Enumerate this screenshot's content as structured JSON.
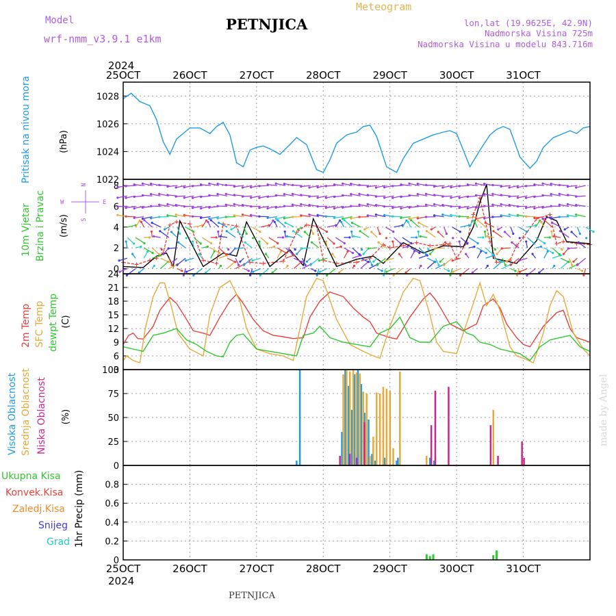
{
  "header": {
    "model_label": "Model",
    "model_name": "wrf-nmm_v3.9.1  e1km",
    "station_title": "PETNJICA",
    "meteogram_label": "Meteogram",
    "coords": "lon,lat (19.9625E, 42.9N)",
    "elevation": "Nadmorska Visina 725m",
    "model_elevation": "Nadmorska Visina u modelu 843.716m"
  },
  "x_axis": {
    "year": "2024",
    "ticks": [
      "25OCT",
      "26OCT",
      "27OCT",
      "28OCT",
      "29OCT",
      "30OCT",
      "31OCT"
    ]
  },
  "footer": {
    "station": "PETNJICA",
    "credit": "made by Angel"
  },
  "colors": {
    "pressure": "#1e9be6",
    "temp2m": "#e8413c",
    "sfc": "#e6a93a",
    "dewpt": "#2ec82e",
    "high_cloud": "#1e9be6",
    "mid_cloud": "#e6a93a",
    "low_cloud": "#c8288c",
    "wind_speed": "#e8413c",
    "wind_gust": "#000000",
    "total_precip": "#2ec82e"
  },
  "chart_data": [
    {
      "type": "line",
      "panel": "pressure",
      "ylabel": "Pritisak na nivou mora",
      "unit": "(hPa)",
      "ylim": [
        1022,
        1029
      ],
      "yticks": [
        1022,
        1024,
        1026,
        1028
      ],
      "grid": true,
      "series": [
        {
          "color_key": "pressure",
          "x": [
            0,
            0.12,
            0.25,
            0.4,
            0.5,
            0.6,
            0.7,
            0.8,
            1.0,
            1.15,
            1.3,
            1.4,
            1.5,
            1.6,
            1.7,
            1.8,
            1.9,
            2.0,
            2.1,
            2.2,
            2.35,
            2.5,
            2.6,
            2.75,
            2.9,
            3.0,
            3.1,
            3.2,
            3.35,
            3.5,
            3.6,
            3.7,
            3.8,
            3.95,
            4.1,
            4.2,
            4.35,
            4.5,
            4.65,
            4.8,
            4.9,
            5.0,
            5.1,
            5.2,
            5.35,
            5.5,
            5.6,
            5.7,
            5.8,
            5.95,
            6.1,
            6.2,
            6.3,
            6.45,
            6.6,
            6.7,
            6.8,
            6.9,
            7.0
          ],
          "values": [
            1027.8,
            1028.2,
            1027.6,
            1027.3,
            1026.3,
            1024.7,
            1023.8,
            1024.9,
            1025.7,
            1025.7,
            1025.3,
            1025.8,
            1026.1,
            1025.2,
            1023.2,
            1022.9,
            1024.1,
            1024.3,
            1024.4,
            1024.2,
            1023.8,
            1024.5,
            1025.0,
            1024.5,
            1022.7,
            1022.5,
            1023.4,
            1024.6,
            1025.2,
            1025.4,
            1025.8,
            1025.9,
            1025.1,
            1022.9,
            1022.5,
            1023.5,
            1024.6,
            1024.9,
            1025.2,
            1025.4,
            1025.5,
            1025.3,
            1024.1,
            1022.9,
            1024.1,
            1025.2,
            1025.6,
            1025.8,
            1025.6,
            1023.6,
            1022.8,
            1023.3,
            1024.3,
            1025.0,
            1025.3,
            1025.5,
            1025.3,
            1025.7,
            1025.8
          ]
        }
      ]
    },
    {
      "type": "line",
      "panel": "wind",
      "ylabel": "10m Vjetar",
      "ylabel2": "Brzina i Pravac",
      "unit": "(m/s)",
      "compass": {
        "north": "N",
        "west": "W",
        "east": "E",
        "south": "S"
      },
      "ylim": [
        -0.5,
        8.6
      ],
      "yticks": [
        0,
        2,
        4,
        6,
        8
      ],
      "grid": true,
      "series": [
        {
          "color_key": "wind_speed",
          "dashed": true,
          "x": [
            0,
            0.2,
            0.4,
            0.5,
            0.6,
            0.7,
            0.8,
            1.0,
            1.2,
            1.4,
            1.5,
            1.7,
            1.9,
            2.1,
            2.4,
            2.6,
            2.75,
            2.9,
            3.0,
            3.2,
            3.5,
            3.7,
            3.9,
            4.0,
            4.2,
            4.4,
            4.6,
            4.8,
            4.9,
            5.0,
            5.15,
            5.25,
            5.35,
            5.5,
            5.6,
            5.8,
            5.9,
            6.0,
            6.2,
            6.4,
            6.5,
            6.6,
            6.8,
            7.0
          ],
          "values": [
            0.6,
            0.4,
            0.8,
            1.0,
            1.5,
            4.2,
            4.5,
            4.3,
            0.8,
            0.5,
            4.3,
            4.1,
            0.6,
            0.5,
            0.7,
            3.5,
            4.2,
            4.1,
            0.8,
            0.5,
            0.6,
            1.0,
            2.3,
            2.0,
            2.2,
            2.5,
            2.2,
            2.3,
            2.4,
            1.0,
            2.5,
            5.2,
            6.8,
            2.6,
            0.6,
            0.8,
            2.2,
            3.0,
            4.8,
            5.2,
            2.4,
            2.6,
            2.4,
            2.3
          ]
        },
        {
          "color_key": "wind_gust",
          "dashed": false,
          "x": [
            0,
            0.3,
            0.5,
            0.65,
            0.75,
            0.85,
            1.2,
            1.5,
            1.7,
            1.85,
            2.2,
            2.5,
            2.7,
            2.85,
            3.2,
            3.5,
            3.75,
            3.9,
            4.2,
            4.5,
            4.8,
            5.1,
            5.25,
            5.35,
            5.45,
            5.55,
            5.9,
            6.2,
            6.35,
            6.5,
            6.65,
            6.8,
            7.0
          ],
          "values": [
            0.2,
            0.1,
            1.2,
            1.5,
            0.2,
            4.6,
            0.2,
            1.5,
            1.2,
            4.5,
            0.2,
            1.8,
            0.3,
            4.8,
            0.2,
            0.9,
            1.2,
            0.5,
            2.5,
            1.5,
            2.2,
            2.1,
            4.0,
            6.4,
            8.1,
            1.0,
            0.5,
            2.7,
            5.0,
            4.6,
            2.6,
            2.5,
            2.4
          ]
        }
      ]
    },
    {
      "type": "line",
      "panel": "temperature",
      "ylabel": "2m Temp",
      "ylabel2": "SFC Temp",
      "ylabel3": "dewpt Temp",
      "unit": "(C)",
      "ylim": [
        3,
        24
      ],
      "yticks": [
        3,
        6,
        9,
        12,
        15,
        18,
        21,
        24
      ],
      "grid": true,
      "series": [
        {
          "color_key": "temp2m",
          "x": [
            0,
            0.08,
            0.15,
            0.22,
            0.3,
            0.45,
            0.55,
            0.7,
            0.8,
            0.95,
            1.05,
            1.2,
            1.3,
            1.45,
            1.6,
            1.7,
            1.8,
            1.95,
            2.1,
            2.25,
            2.4,
            2.55,
            2.7,
            2.8,
            2.95,
            3.1,
            3.3,
            3.45,
            3.6,
            3.7,
            3.8,
            3.9,
            4.0,
            4.1,
            4.3,
            4.5,
            4.6,
            4.7,
            4.8,
            4.9,
            5.1,
            5.3,
            5.4,
            5.55,
            5.65,
            5.75,
            5.9,
            6.0,
            6.1,
            6.3,
            6.5,
            6.6,
            6.7,
            6.8,
            7.0
          ],
          "values": [
            8.5,
            10.5,
            11.0,
            9.8,
            9.7,
            12.5,
            16.0,
            18.8,
            17.5,
            14.0,
            11.5,
            11.0,
            10.5,
            14.5,
            18.0,
            19.5,
            17.5,
            14.0,
            11.5,
            10.5,
            10.2,
            9.8,
            10.0,
            14.5,
            18.0,
            20.0,
            19.0,
            16.5,
            14.5,
            13.5,
            11.0,
            10.5,
            10.0,
            9.7,
            14.5,
            18.5,
            19.8,
            18.0,
            15.5,
            13.0,
            11.5,
            13.0,
            17.0,
            18.5,
            16.5,
            13.0,
            10.0,
            8.5,
            8.0,
            12.5,
            15.5,
            16.0,
            12.0,
            10.0,
            9.0
          ]
        },
        {
          "color_key": "sfc",
          "x": [
            0,
            0.05,
            0.15,
            0.25,
            0.33,
            0.45,
            0.55,
            0.62,
            0.72,
            0.82,
            1.0,
            1.2,
            1.3,
            1.45,
            1.6,
            1.75,
            1.85,
            2.0,
            2.2,
            2.4,
            2.55,
            2.65,
            2.75,
            2.9,
            3.0,
            3.2,
            3.4,
            3.6,
            3.75,
            3.85,
            4.0,
            4.2,
            4.35,
            4.45,
            4.6,
            4.7,
            4.8,
            5.0,
            5.1,
            5.25,
            5.35,
            5.45,
            5.55,
            5.65,
            5.8,
            5.9,
            6.0,
            6.15,
            6.3,
            6.4,
            6.5,
            6.6,
            6.75,
            6.9,
            7.0
          ],
          "values": [
            5.0,
            6.0,
            5.0,
            4.5,
            12.0,
            19.0,
            22.0,
            22.0,
            17.0,
            11.0,
            7.5,
            6.0,
            15.0,
            21.0,
            22.5,
            18.0,
            12.0,
            7.5,
            6.5,
            6.0,
            5.0,
            12.0,
            19.0,
            23.0,
            22.5,
            14.0,
            8.5,
            7.0,
            6.0,
            5.5,
            12.5,
            20.0,
            23.0,
            22.5,
            15.0,
            9.0,
            7.0,
            6.5,
            11.0,
            17.5,
            22.0,
            17.0,
            19.5,
            16.0,
            8.0,
            6.0,
            5.5,
            4.5,
            11.0,
            17.0,
            20.3,
            19.0,
            11.0,
            7.5,
            6.0
          ]
        },
        {
          "color_key": "dewpt",
          "x": [
            0,
            0.15,
            0.3,
            0.45,
            0.6,
            0.7,
            0.8,
            0.95,
            1.1,
            1.25,
            1.4,
            1.5,
            1.6,
            1.7,
            1.8,
            2.0,
            2.2,
            2.4,
            2.6,
            2.7,
            2.85,
            2.95,
            3.1,
            3.3,
            3.5,
            3.7,
            3.85,
            4.0,
            4.15,
            4.3,
            4.45,
            4.6,
            4.8,
            5.0,
            5.15,
            5.25,
            5.35,
            5.5,
            5.65,
            5.8,
            5.95,
            6.1,
            6.25,
            6.4,
            6.55,
            6.7,
            6.85,
            7.0
          ],
          "values": [
            8.0,
            7.5,
            7.0,
            10.5,
            11.0,
            11.5,
            12.0,
            9.5,
            8.5,
            7.0,
            6.0,
            5.8,
            9.0,
            10.5,
            10.8,
            7.5,
            7.0,
            6.5,
            6.0,
            10.5,
            11.0,
            12.5,
            10.0,
            9.0,
            8.5,
            8.0,
            11.0,
            12.0,
            14.5,
            10.0,
            9.0,
            9.0,
            12.5,
            13.5,
            11.0,
            10.5,
            9.0,
            8.5,
            7.5,
            7.0,
            6.5,
            5.0,
            8.0,
            9.5,
            10.0,
            10.5,
            8.0,
            7.0
          ]
        }
      ]
    },
    {
      "type": "bar",
      "panel": "clouds",
      "ylabel": "Visoka Oblacnost",
      "ylabel2": "Srednja Oblacnost",
      "ylabel3": "Niska Oblacnost",
      "unit": "(%)",
      "ylim": [
        0,
        100
      ],
      "yticks": [
        0,
        25,
        50,
        75,
        100
      ],
      "grid": true,
      "series": [
        {
          "color_key": "high_cloud",
          "x": [
            2.6,
            2.65,
            3.28,
            3.33,
            3.38,
            3.43,
            3.47,
            3.52,
            3.57,
            3.62,
            3.68,
            3.73,
            3.78,
            3.9,
            3.92,
            4.1,
            4.12,
            4.6,
            4.66
          ],
          "values": [
            5,
            100,
            35,
            100,
            83,
            58,
            95,
            100,
            85,
            55,
            48,
            12,
            5,
            5,
            8,
            5,
            8,
            8,
            5
          ]
        },
        {
          "color_key": "mid_cloud",
          "x": [
            3.3,
            3.35,
            3.4,
            3.45,
            3.5,
            3.55,
            3.6,
            3.65,
            3.7,
            3.75,
            3.8,
            3.85,
            3.9,
            3.95,
            4.0,
            4.05,
            4.15,
            4.55,
            4.68,
            5.55
          ],
          "values": [
            95,
            100,
            98,
            100,
            97,
            96,
            77,
            75,
            10,
            30,
            76,
            75,
            82,
            80,
            78,
            18,
            98,
            10,
            8,
            58
          ]
        },
        {
          "color_key": "low_cloud",
          "x": [
            3.25,
            3.4,
            3.5,
            3.62,
            4.62,
            4.68,
            4.88,
            5.51,
            5.62,
            5.98,
            6.01
          ],
          "values": [
            10,
            12,
            8,
            45,
            42,
            78,
            82,
            42,
            10,
            25,
            8
          ]
        }
      ]
    },
    {
      "type": "bar",
      "panel": "precipitation",
      "ylabel": "1hr Precip (mm)",
      "legend": [
        "Ukupna Kisa",
        "Konvek.Kisa",
        "Zaledj.Kisa",
        "Snijeg",
        "Grad"
      ],
      "ylim": [
        0,
        1
      ],
      "yticks": [
        0,
        0.2,
        0.4,
        0.6,
        0.8
      ],
      "grid": true,
      "series": [
        {
          "color_key": "total_precip",
          "x": [
            4.55,
            4.6,
            4.65,
            5.55,
            5.6
          ],
          "values": [
            0.06,
            0.04,
            0.06,
            0.05,
            0.1
          ]
        }
      ]
    }
  ]
}
